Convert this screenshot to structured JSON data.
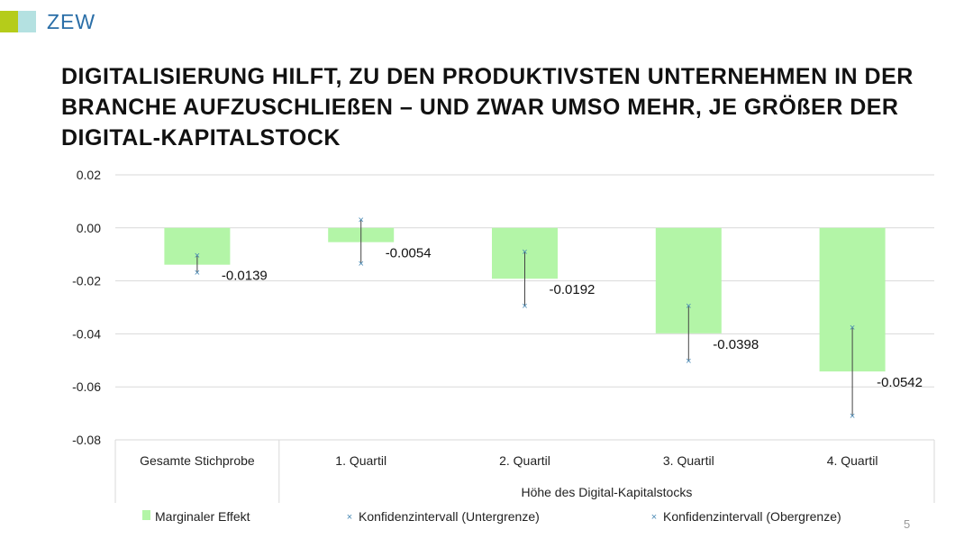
{
  "logo": {
    "text": "ZEW",
    "colors": [
      "#b5cc1a",
      "#b4e1e1"
    ]
  },
  "title": "DIGITALISIERUNG HILFT, ZU DEN PRODUKTIVSTEN UNTERNEHMEN IN DER BRANCHE AUFZUSCHLIEßEN – UND ZWAR UMSO MEHR, JE GRÖßER DER DIGITAL-KAPITALSTOCK",
  "page_number": "5",
  "chart_data": {
    "type": "bar",
    "categories": [
      "Gesamte Stichprobe",
      "1. Quartil",
      "2. Quartil",
      "3. Quartil",
      "4. Quartil"
    ],
    "group_label": "Höhe des Digital-Kapitalstocks",
    "series": [
      {
        "name": "Marginaler Effekt",
        "values": [
          -0.0139,
          -0.0054,
          -0.0192,
          -0.0398,
          -0.0542
        ],
        "color": "#b3f5a7"
      },
      {
        "name": "Konfidenzintervall (Untergrenze)",
        "values": [
          -0.0167,
          -0.0133,
          -0.0293,
          -0.05,
          -0.0708
        ],
        "color": "#4a8ab5"
      },
      {
        "name": "Konfidenzintervall (Obergrenze)",
        "values": [
          -0.0102,
          0.0031,
          -0.0089,
          -0.0293,
          -0.0374
        ],
        "color": "#4a8ab5"
      }
    ],
    "data_labels": [
      "-0.0139",
      "-0.0054",
      "-0.0192",
      "-0.0398",
      "-0.0542"
    ],
    "yticks": [
      "0.02",
      "0.00",
      "-0.02",
      "-0.04",
      "-0.06",
      "-0.08"
    ],
    "ylim": [
      -0.08,
      0.02
    ],
    "grid": true,
    "legend": "bottom"
  }
}
